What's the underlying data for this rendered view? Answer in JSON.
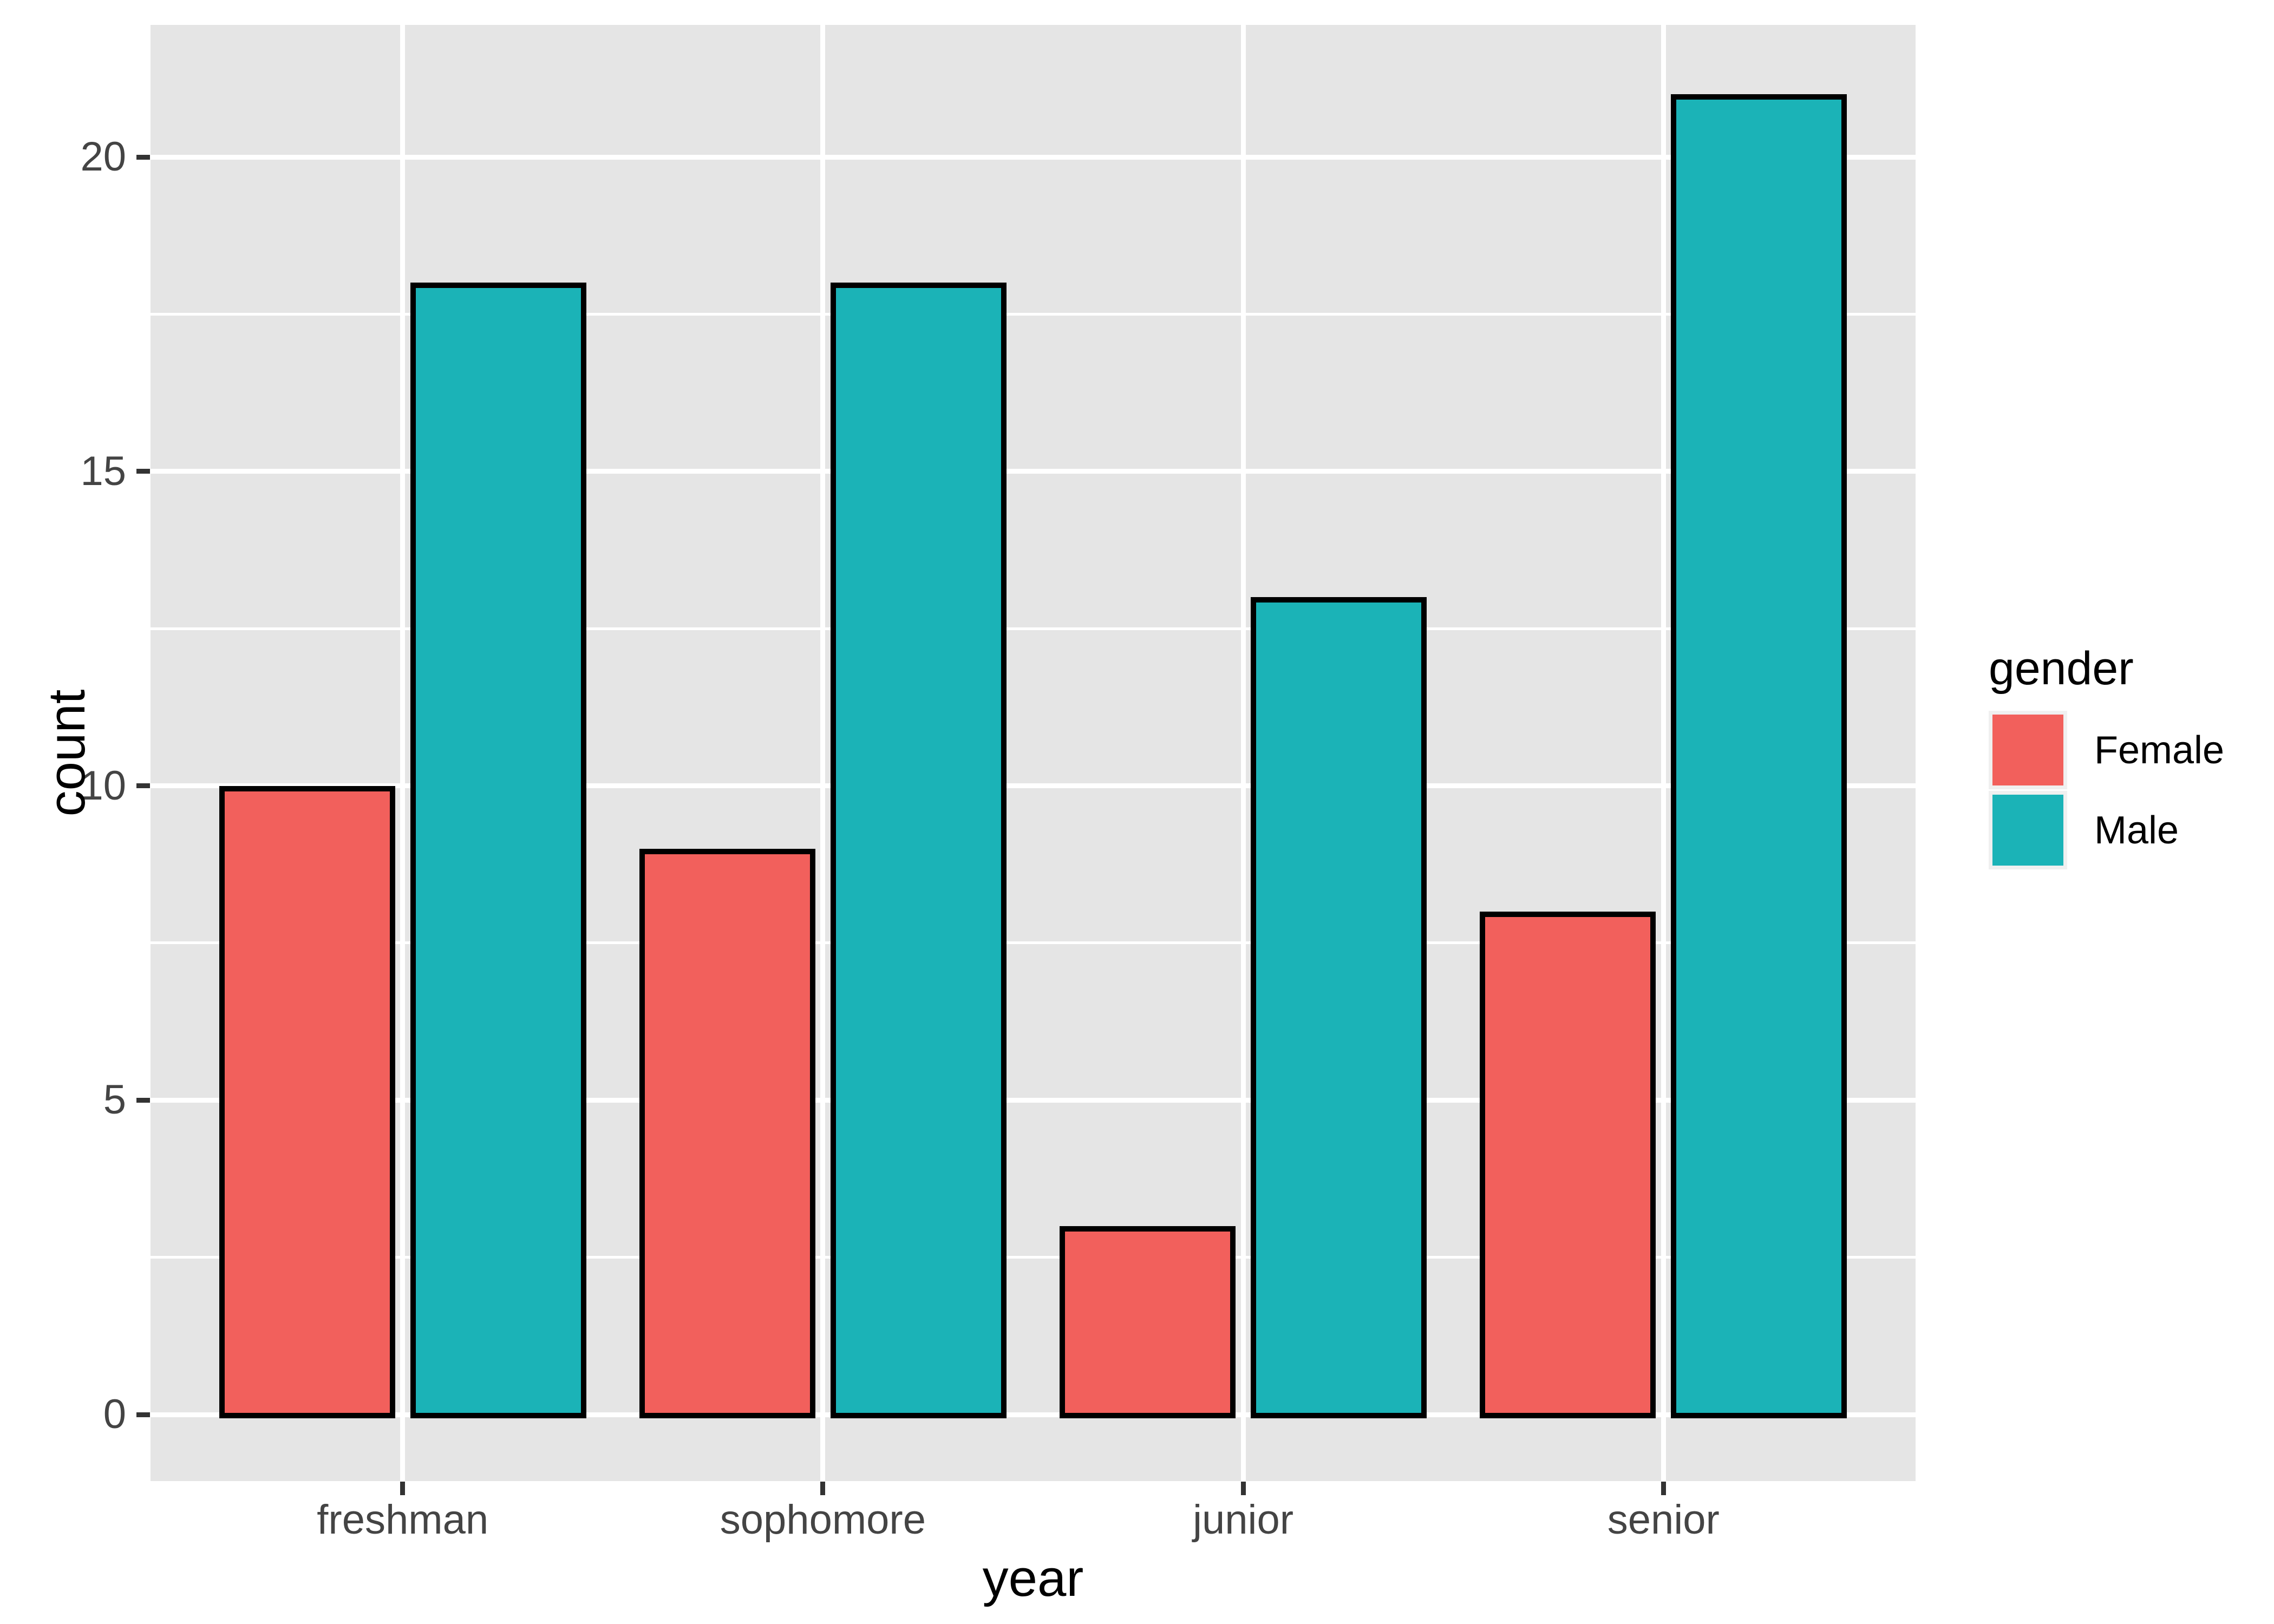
{
  "chart_data": {
    "type": "bar",
    "bar_mode": "dodge",
    "title": "",
    "xlabel": "year",
    "ylabel": "count",
    "categories": [
      "freshman",
      "sophomore",
      "junior",
      "senior"
    ],
    "series": [
      {
        "name": "Female",
        "color": "#F2605C",
        "values": [
          10,
          9,
          3,
          8
        ]
      },
      {
        "name": "Male",
        "color": "#1BB3B7",
        "values": [
          18,
          18,
          13,
          21
        ]
      }
    ],
    "y_ticks": [
      0,
      5,
      10,
      15,
      20
    ],
    "y_tick_labels": [
      "0",
      "5",
      "10",
      "15",
      "20"
    ],
    "y_minor_ticks": [
      2.5,
      7.5,
      12.5,
      17.5
    ],
    "ylim": [
      -1.05,
      22.05
    ],
    "grid": true,
    "legend": {
      "title": "gender",
      "position": "right",
      "labels": [
        "Female",
        "Male"
      ]
    }
  },
  "colors": {
    "panel_background": "#E5E5E5",
    "gridline": "#FFFFFF",
    "bar_outline": "#000000",
    "tick_mark": "#333333",
    "tick_label_text": "#444444",
    "axis_title_text": "#000000",
    "legend_key_background": "#F0F0F0",
    "female_fill": "#F2605C",
    "male_fill": "#1BB3B7"
  }
}
